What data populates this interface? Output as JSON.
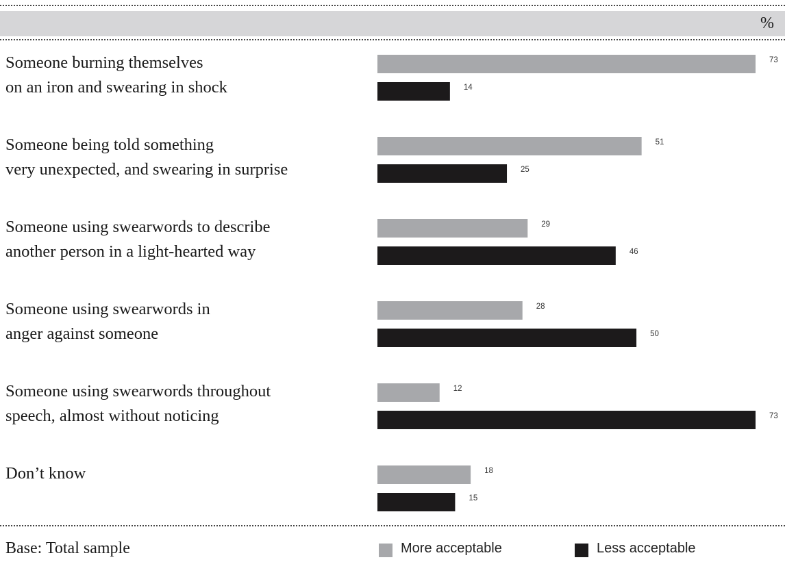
{
  "chart_data": {
    "type": "bar",
    "orientation": "horizontal",
    "unit": "%",
    "categories": [
      [
        "Someone burning themselves",
        "on an iron and swearing in shock"
      ],
      [
        "Someone being told something",
        "very unexpected, and swearing in surprise"
      ],
      [
        "Someone using swearwords to describe",
        "another person in a light-hearted way"
      ],
      [
        "Someone using swearwords in",
        "anger against someone"
      ],
      [
        "Someone using swearwords throughout",
        "speech, almost without noticing"
      ],
      [
        "Don’t know"
      ]
    ],
    "series": [
      {
        "name": "More acceptable",
        "color": "#a7a8ab",
        "values": [
          73,
          51,
          29,
          28,
          12,
          18
        ]
      },
      {
        "name": "Less acceptable",
        "color": "#1c1a1b",
        "values": [
          14,
          25,
          46,
          50,
          73,
          15
        ]
      }
    ],
    "xlim": [
      0,
      73
    ],
    "grid": false,
    "legend_position": "bottom-right",
    "base_note": "Base: Total sample"
  }
}
